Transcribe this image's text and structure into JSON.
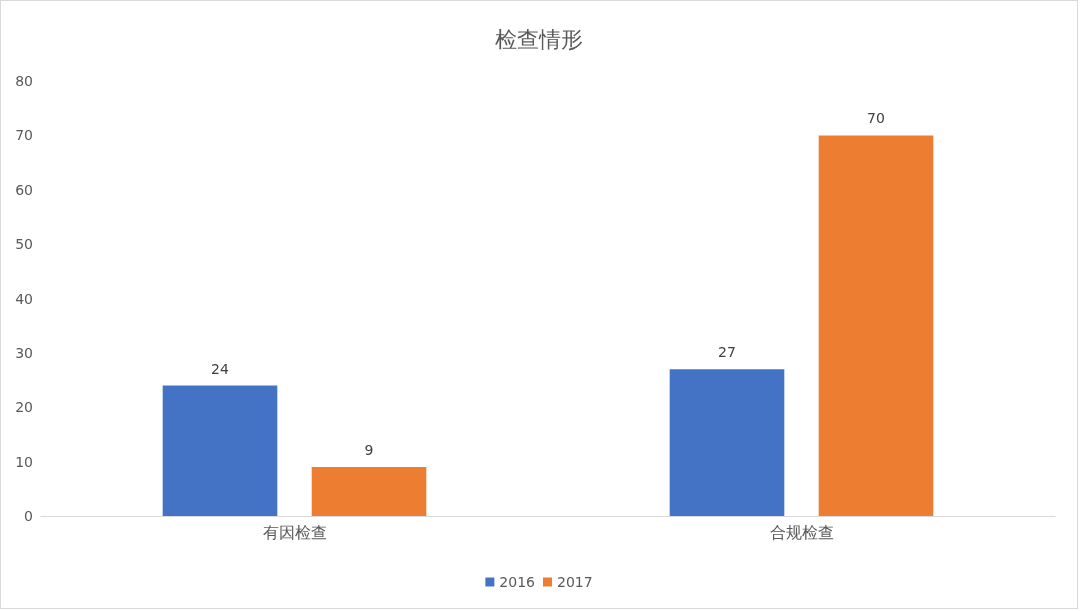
{
  "chart_data": {
    "type": "bar",
    "title": "检查情形",
    "categories": [
      "有因检查",
      "合规检查"
    ],
    "series": [
      {
        "name": "2016",
        "color": "#4472c4",
        "values": [
          24,
          27
        ]
      },
      {
        "name": "2017",
        "color": "#ed7d31",
        "values": [
          9,
          70
        ]
      }
    ],
    "ylim": [
      0,
      80
    ],
    "yticks": [
      0,
      10,
      20,
      30,
      40,
      50,
      60,
      70,
      80
    ],
    "grid": false,
    "legend": "bottom",
    "data_labels": true
  }
}
